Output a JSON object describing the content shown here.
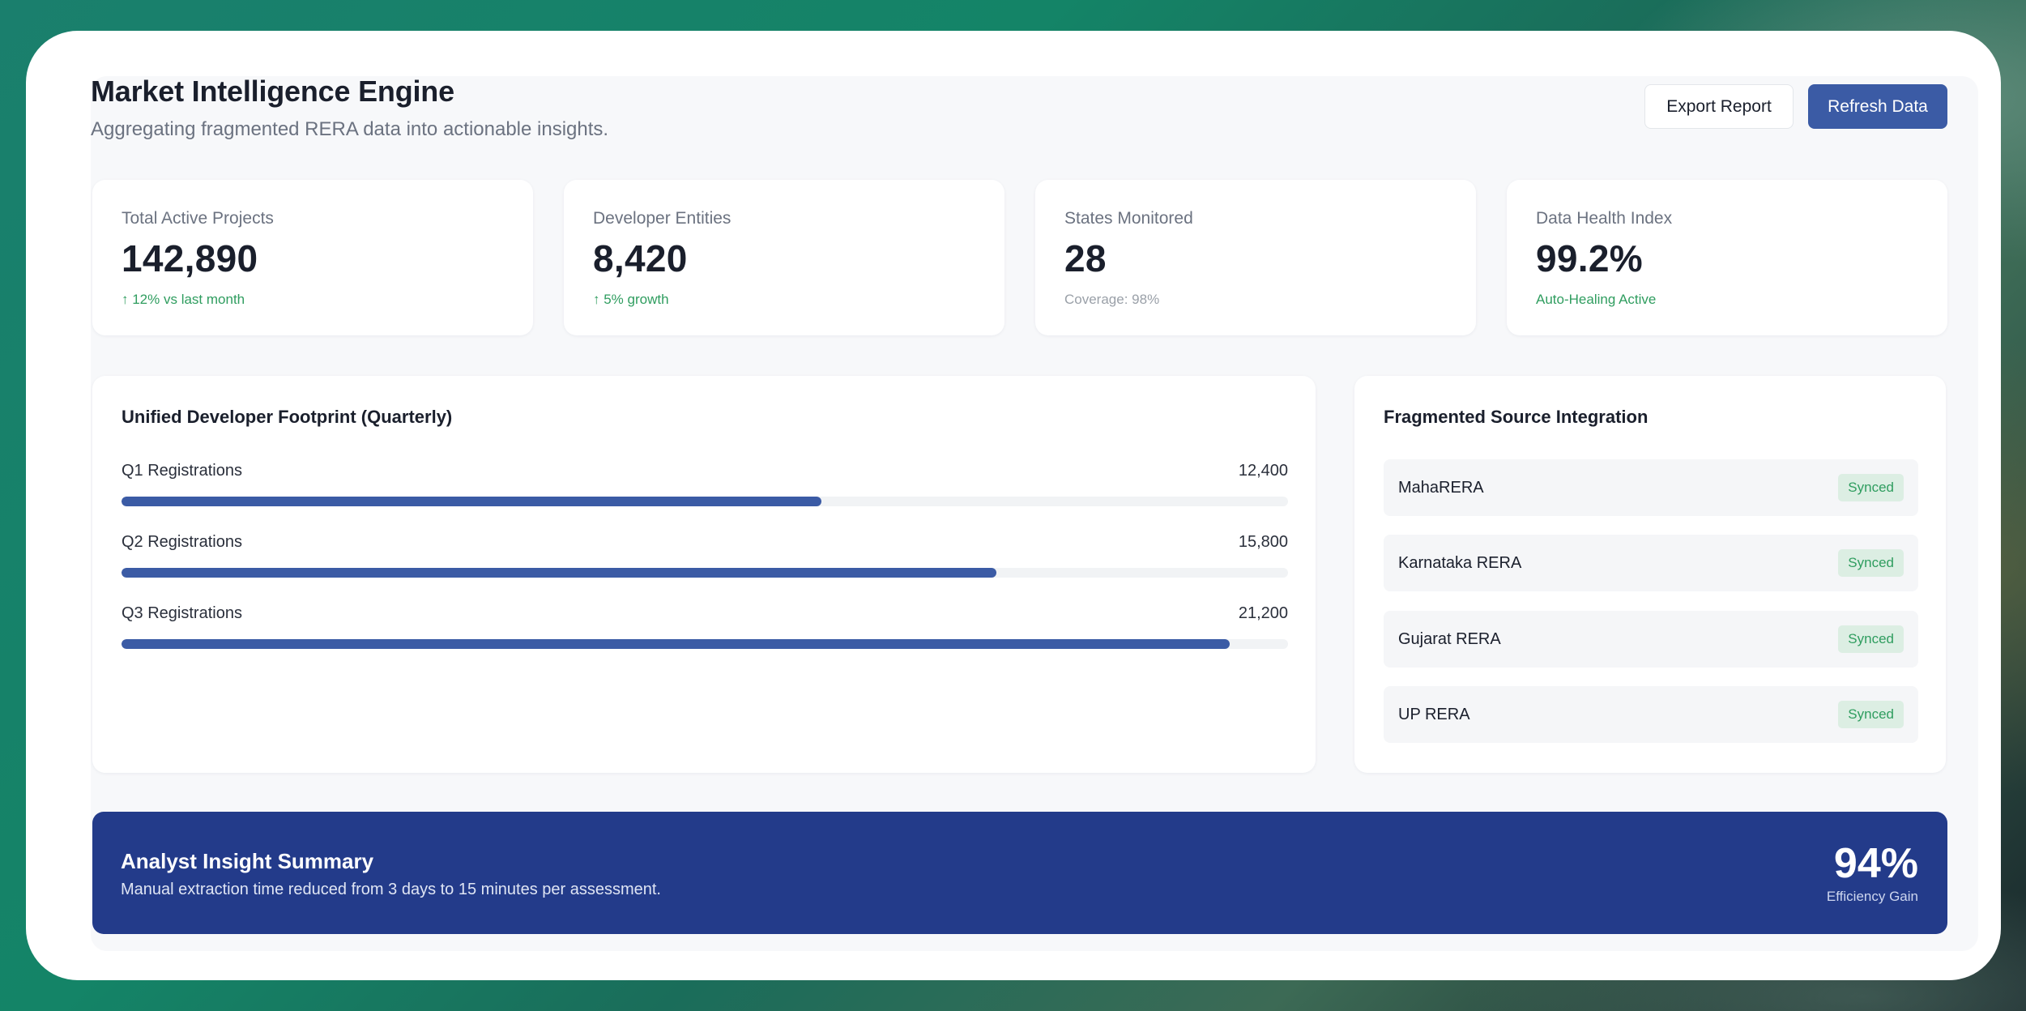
{
  "header": {
    "title": "Market Intelligence Engine",
    "subtitle": "Aggregating fragmented RERA data into actionable insights."
  },
  "actions": {
    "export_label": "Export Report",
    "refresh_label": "Refresh Data"
  },
  "kpis": [
    {
      "label": "Total Active Projects",
      "value": "142,890",
      "sub": "↑ 12% vs last month"
    },
    {
      "label": "Developer Entities",
      "value": "8,420",
      "sub": "↑ 5% growth"
    },
    {
      "label": "States Monitored",
      "value": "28",
      "sub": "Coverage: 98%"
    },
    {
      "label": "Data Health Index",
      "value": "99.2%",
      "sub": "Auto-Healing Active"
    }
  ],
  "footprint": {
    "title": "Unified Developer Footprint (Quarterly)",
    "rows": [
      {
        "label": "Q1 Registrations",
        "value": "12,400",
        "fill": 0.6
      },
      {
        "label": "Q2 Registrations",
        "value": "15,800",
        "fill": 0.75
      },
      {
        "label": "Q3 Registrations",
        "value": "21,200",
        "fill": 0.95
      }
    ]
  },
  "sources": {
    "title": "Fragmented Source Integration",
    "items": [
      {
        "name": "MahaRERA",
        "status": "Synced"
      },
      {
        "name": "Karnataka RERA",
        "status": "Synced"
      },
      {
        "name": "Gujarat RERA",
        "status": "Synced"
      },
      {
        "name": "UP RERA",
        "status": "Synced"
      }
    ]
  },
  "insight": {
    "title": "Analyst Insight Summary",
    "text": "Manual extraction time reduced from 3 days to 15 minutes per assessment.",
    "value": "94%",
    "value_label": "Efficiency Gain"
  },
  "colors": {
    "accent": "#3b5ba5",
    "banner": "#233b8a",
    "positive": "#2f9d5f"
  }
}
